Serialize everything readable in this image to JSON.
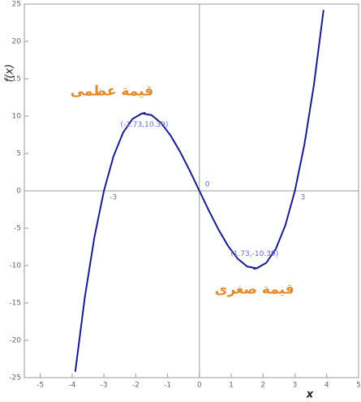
{
  "chart_data": {
    "type": "line",
    "y_label": "f(x)",
    "x_label": "x",
    "x": [
      -3.9,
      -3.6,
      -3.3,
      -3.0,
      -2.7,
      -2.4,
      -2.1,
      -1.8,
      -1.5,
      -1.2,
      -0.9,
      -0.6,
      -0.3,
      0.0,
      0.3,
      0.6,
      0.9,
      1.2,
      1.5,
      1.8,
      2.1,
      2.4,
      2.7,
      3.0,
      3.3,
      3.6,
      3.9
    ],
    "values": [
      -24.219,
      -14.256,
      -6.237,
      0,
      4.617,
      7.776,
      9.639,
      10.368,
      10.125,
      9.072,
      7.371,
      5.184,
      2.673,
      0,
      -2.673,
      -5.184,
      -7.371,
      -9.072,
      -10.125,
      -10.368,
      -9.639,
      -7.776,
      -4.617,
      0,
      6.237,
      14.256,
      24.219
    ],
    "color": "#1c1c8a",
    "xlim": [
      -5.5,
      5
    ],
    "ylim": [
      -25,
      25
    ],
    "xticks": [
      -5,
      -4,
      -3,
      -2,
      -1,
      0,
      1,
      2,
      3,
      4,
      5
    ],
    "yticks": [
      -25,
      -20,
      -15,
      -10,
      -5,
      0,
      5,
      10,
      15,
      20,
      25
    ],
    "roots": [
      -3,
      0,
      3
    ],
    "extrema": [
      {
        "x": -1.73,
        "y": 10.39,
        "label": "(-1.73,10.39)",
        "name": "قيمة عظمى"
      },
      {
        "x": 1.73,
        "y": -10.39,
        "label": "(1.73,-10.39)",
        "name": "قيمة صغرى"
      }
    ]
  }
}
